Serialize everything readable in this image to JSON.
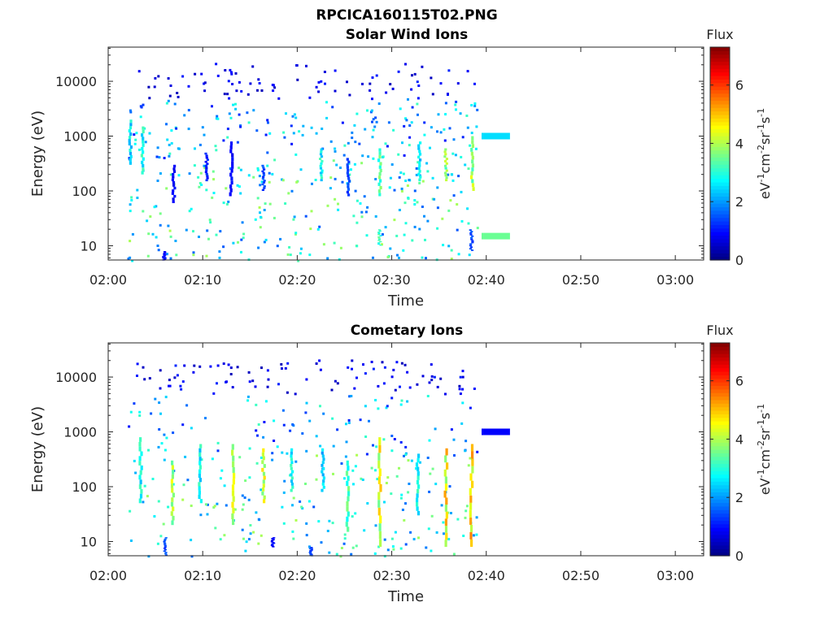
{
  "figure": {
    "title": "RPCICA160115T02.PNG",
    "colorbar_label": "Flux",
    "colorbar_unit_parts": [
      "eV",
      "-1",
      "cm",
      "-2",
      "sr",
      "-1",
      "s",
      "-1"
    ],
    "colorbar_ticks": [
      "0",
      "2",
      "4",
      "6"
    ],
    "colormap": [
      "#00007f",
      "#0000ff",
      "#007fff",
      "#00ffff",
      "#7fff7f",
      "#ffff00",
      "#ff7f00",
      "#ff0000",
      "#7f0000"
    ]
  },
  "chart_data": [
    {
      "type": "heatmap",
      "title": "Solar Wind Ions",
      "xlabel": "Time",
      "ylabel": "Energy (eV)",
      "x_ticks": [
        "02:00",
        "02:10",
        "02:20",
        "02:30",
        "02:40",
        "02:50",
        "03:00"
      ],
      "x_range_minutes": [
        0,
        63
      ],
      "y_scale": "log",
      "y_ticks": [
        10,
        100,
        1000,
        10000
      ],
      "y_range": [
        5.5,
        42000
      ],
      "color_range": [
        0,
        7.3
      ],
      "blocks": [
        {
          "t_start": 39.5,
          "t_end": 42.5,
          "energy": 1000,
          "flux": 2.5
        },
        {
          "t_start": 39.5,
          "t_end": 42.5,
          "energy": 15,
          "flux": 3.5
        }
      ],
      "columns": [
        {
          "t": 2.2,
          "emin": 300,
          "emax": 2000,
          "flux": 2.8
        },
        {
          "t": 3.5,
          "emin": 200,
          "emax": 1500,
          "flux": 3.0
        },
        {
          "t": 6.8,
          "emin": 60,
          "emax": 300,
          "flux": 1.0
        },
        {
          "t": 10.3,
          "emin": 150,
          "emax": 500,
          "flux": 1.2
        },
        {
          "t": 12.9,
          "emin": 80,
          "emax": 800,
          "flux": 1.0
        },
        {
          "t": 16.3,
          "emin": 100,
          "emax": 300,
          "flux": 1.5
        },
        {
          "t": 22.4,
          "emin": 150,
          "emax": 600,
          "flux": 3.0
        },
        {
          "t": 25.3,
          "emin": 80,
          "emax": 400,
          "flux": 1.5
        },
        {
          "t": 28.6,
          "emin": 80,
          "emax": 600,
          "flux": 3.5
        },
        {
          "t": 32.8,
          "emin": 150,
          "emax": 800,
          "flux": 2.8
        },
        {
          "t": 35.6,
          "emin": 150,
          "emax": 600,
          "flux": 4.0
        },
        {
          "t": 38.4,
          "emin": 100,
          "emax": 1000,
          "flux": 4.2
        },
        {
          "t": 38.3,
          "emin": 8,
          "emax": 20,
          "flux": 1.5
        },
        {
          "t": 28.6,
          "emin": 10,
          "emax": 20,
          "flux": 3.3
        },
        {
          "t": 5.8,
          "emin": 5.5,
          "emax": 8,
          "flux": 1.0
        }
      ]
    },
    {
      "type": "heatmap",
      "title": "Cometary Ions",
      "xlabel": "Time",
      "ylabel": "Energy (eV)",
      "x_ticks": [
        "02:00",
        "02:10",
        "02:20",
        "02:30",
        "02:40",
        "02:50",
        "03:00"
      ],
      "x_range_minutes": [
        0,
        63
      ],
      "y_scale": "log",
      "y_ticks": [
        10,
        100,
        1000,
        10000
      ],
      "y_range": [
        5.5,
        42000
      ],
      "color_range": [
        0,
        7.3
      ],
      "blocks": [
        {
          "t_start": 39.5,
          "t_end": 42.5,
          "energy": 1000,
          "flux": 0.9
        }
      ],
      "columns": [
        {
          "t": 3.3,
          "emin": 50,
          "emax": 800,
          "flux": 3.0
        },
        {
          "t": 6.7,
          "emin": 20,
          "emax": 300,
          "flux": 4.2
        },
        {
          "t": 9.6,
          "emin": 50,
          "emax": 600,
          "flux": 3.0
        },
        {
          "t": 13.1,
          "emin": 20,
          "emax": 600,
          "flux": 4.3
        },
        {
          "t": 16.3,
          "emin": 50,
          "emax": 500,
          "flux": 4.5
        },
        {
          "t": 19.3,
          "emin": 80,
          "emax": 500,
          "flux": 3.0
        },
        {
          "t": 22.6,
          "emin": 80,
          "emax": 500,
          "flux": 2.5
        },
        {
          "t": 25.2,
          "emin": 15,
          "emax": 300,
          "flux": 3.5
        },
        {
          "t": 28.6,
          "emin": 8,
          "emax": 800,
          "flux": 4.6
        },
        {
          "t": 32.6,
          "emin": 30,
          "emax": 400,
          "flux": 3.0
        },
        {
          "t": 35.6,
          "emin": 8,
          "emax": 500,
          "flux": 4.8
        },
        {
          "t": 38.3,
          "emin": 8,
          "emax": 600,
          "flux": 5.2
        },
        {
          "t": 5.9,
          "emin": 5.5,
          "emax": 12,
          "flux": 1.5
        },
        {
          "t": 17.3,
          "emin": 8,
          "emax": 12,
          "flux": 1.0
        },
        {
          "t": 21.3,
          "emin": 5.5,
          "emax": 8,
          "flux": 1.5
        }
      ]
    }
  ]
}
